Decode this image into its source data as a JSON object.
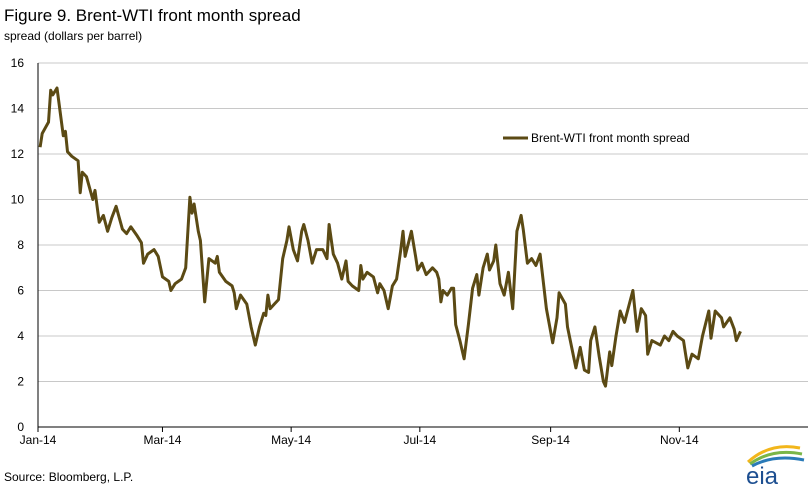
{
  "header": {
    "title": "Figure 9. Brent-WTI front month spread",
    "subtitle": "spread (dollars per barrel)"
  },
  "footer": {
    "source": "Source: Bloomberg, L.P.",
    "logo_text": "eia"
  },
  "colors": {
    "line": "#5b4a14",
    "grid": "#c8c8c8",
    "axis": "#000000"
  },
  "chart_data": {
    "type": "line",
    "title": "Figure 9. Brent-WTI front month spread",
    "ylabel": "spread (dollars per barrel)",
    "xlabel": "",
    "ylim": [
      0,
      16
    ],
    "yticks": [
      0,
      2,
      4,
      6,
      8,
      10,
      12,
      14,
      16
    ],
    "xlim": [
      "2014-01-02",
      "2014-12-31"
    ],
    "xticks": [
      {
        "date": "2014-01-01",
        "label": "Jan-14"
      },
      {
        "date": "2014-03-01",
        "label": "Mar-14"
      },
      {
        "date": "2014-05-01",
        "label": "May-14"
      },
      {
        "date": "2014-07-01",
        "label": "Jul-14"
      },
      {
        "date": "2014-09-01",
        "label": "Sep-14"
      },
      {
        "date": "2014-11-01",
        "label": "Nov-14"
      }
    ],
    "grid": "horizontal",
    "legend_position": "top-right",
    "series": [
      {
        "name": "Brent-WTI front month spread",
        "points": [
          [
            "2014-01-02",
            12.3
          ],
          [
            "2014-01-03",
            12.9
          ],
          [
            "2014-01-06",
            13.4
          ],
          [
            "2014-01-07",
            14.8
          ],
          [
            "2014-01-08",
            14.6
          ],
          [
            "2014-01-10",
            14.9
          ],
          [
            "2014-01-13",
            12.8
          ],
          [
            "2014-01-14",
            13.0
          ],
          [
            "2014-01-15",
            12.1
          ],
          [
            "2014-01-17",
            11.9
          ],
          [
            "2014-01-20",
            11.7
          ],
          [
            "2014-01-21",
            10.3
          ],
          [
            "2014-01-22",
            11.2
          ],
          [
            "2014-01-24",
            11.0
          ],
          [
            "2014-01-27",
            10.0
          ],
          [
            "2014-01-28",
            10.4
          ],
          [
            "2014-01-30",
            9.0
          ],
          [
            "2014-02-01",
            9.3
          ],
          [
            "2014-02-03",
            8.6
          ],
          [
            "2014-02-05",
            9.2
          ],
          [
            "2014-02-07",
            9.7
          ],
          [
            "2014-02-10",
            8.7
          ],
          [
            "2014-02-12",
            8.5
          ],
          [
            "2014-02-14",
            8.8
          ],
          [
            "2014-02-17",
            8.4
          ],
          [
            "2014-02-19",
            8.1
          ],
          [
            "2014-02-20",
            7.2
          ],
          [
            "2014-02-22",
            7.6
          ],
          [
            "2014-02-25",
            7.8
          ],
          [
            "2014-02-27",
            7.5
          ],
          [
            "2014-03-01",
            6.6
          ],
          [
            "2014-03-04",
            6.4
          ],
          [
            "2014-03-05",
            6.0
          ],
          [
            "2014-03-07",
            6.3
          ],
          [
            "2014-03-10",
            6.5
          ],
          [
            "2014-03-12",
            7.0
          ],
          [
            "2014-03-14",
            10.1
          ],
          [
            "2014-03-15",
            9.4
          ],
          [
            "2014-03-16",
            9.8
          ],
          [
            "2014-03-18",
            8.6
          ],
          [
            "2014-03-19",
            8.2
          ],
          [
            "2014-03-21",
            5.5
          ],
          [
            "2014-03-23",
            7.4
          ],
          [
            "2014-03-26",
            7.2
          ],
          [
            "2014-03-27",
            7.5
          ],
          [
            "2014-03-28",
            6.8
          ],
          [
            "2014-03-31",
            6.4
          ],
          [
            "2014-04-03",
            6.2
          ],
          [
            "2014-04-04",
            5.9
          ],
          [
            "2014-04-05",
            5.2
          ],
          [
            "2014-04-07",
            5.8
          ],
          [
            "2014-04-10",
            5.4
          ],
          [
            "2014-04-12",
            4.4
          ],
          [
            "2014-04-14",
            3.6
          ],
          [
            "2014-04-16",
            4.4
          ],
          [
            "2014-04-18",
            5.0
          ],
          [
            "2014-04-19",
            4.9
          ],
          [
            "2014-04-20",
            5.8
          ],
          [
            "2014-04-21",
            5.2
          ],
          [
            "2014-04-23",
            5.4
          ],
          [
            "2014-04-25",
            5.6
          ],
          [
            "2014-04-27",
            7.4
          ],
          [
            "2014-04-29",
            8.2
          ],
          [
            "2014-04-30",
            8.8
          ],
          [
            "2014-05-02",
            7.8
          ],
          [
            "2014-05-04",
            7.3
          ],
          [
            "2014-05-06",
            8.6
          ],
          [
            "2014-05-07",
            8.9
          ],
          [
            "2014-05-09",
            8.2
          ],
          [
            "2014-05-11",
            7.2
          ],
          [
            "2014-05-13",
            7.8
          ],
          [
            "2014-05-16",
            7.8
          ],
          [
            "2014-05-18",
            7.4
          ],
          [
            "2014-05-19",
            8.9
          ],
          [
            "2014-05-21",
            7.6
          ],
          [
            "2014-05-23",
            7.2
          ],
          [
            "2014-05-25",
            6.5
          ],
          [
            "2014-05-27",
            7.3
          ],
          [
            "2014-05-28",
            6.4
          ],
          [
            "2014-05-30",
            6.2
          ],
          [
            "2014-06-02",
            6.0
          ],
          [
            "2014-06-03",
            7.1
          ],
          [
            "2014-06-04",
            6.5
          ],
          [
            "2014-06-06",
            6.8
          ],
          [
            "2014-06-09",
            6.6
          ],
          [
            "2014-06-11",
            5.9
          ],
          [
            "2014-06-12",
            6.3
          ],
          [
            "2014-06-14",
            6.0
          ],
          [
            "2014-06-16",
            5.2
          ],
          [
            "2014-06-18",
            6.2
          ],
          [
            "2014-06-20",
            6.5
          ],
          [
            "2014-06-22",
            7.8
          ],
          [
            "2014-06-23",
            8.6
          ],
          [
            "2014-06-24",
            7.5
          ],
          [
            "2014-06-27",
            8.6
          ],
          [
            "2014-06-29",
            7.5
          ],
          [
            "2014-06-30",
            6.9
          ],
          [
            "2014-07-02",
            7.2
          ],
          [
            "2014-07-04",
            6.7
          ],
          [
            "2014-07-07",
            7.0
          ],
          [
            "2014-07-09",
            6.8
          ],
          [
            "2014-07-10",
            6.5
          ],
          [
            "2014-07-11",
            5.5
          ],
          [
            "2014-07-12",
            6.0
          ],
          [
            "2014-07-14",
            5.8
          ],
          [
            "2014-07-16",
            6.1
          ],
          [
            "2014-07-17",
            6.1
          ],
          [
            "2014-07-18",
            4.5
          ],
          [
            "2014-07-20",
            3.8
          ],
          [
            "2014-07-22",
            3.0
          ],
          [
            "2014-07-24",
            4.5
          ],
          [
            "2014-07-26",
            6.1
          ],
          [
            "2014-07-28",
            6.7
          ],
          [
            "2014-07-29",
            5.8
          ],
          [
            "2014-07-31",
            7.0
          ],
          [
            "2014-08-02",
            7.6
          ],
          [
            "2014-08-03",
            6.9
          ],
          [
            "2014-08-05",
            7.3
          ],
          [
            "2014-08-06",
            8.0
          ],
          [
            "2014-08-08",
            6.3
          ],
          [
            "2014-08-10",
            5.8
          ],
          [
            "2014-08-12",
            6.8
          ],
          [
            "2014-08-14",
            5.2
          ],
          [
            "2014-08-16",
            8.6
          ],
          [
            "2014-08-18",
            9.3
          ],
          [
            "2014-08-19",
            8.7
          ],
          [
            "2014-08-21",
            7.2
          ],
          [
            "2014-08-23",
            7.4
          ],
          [
            "2014-08-25",
            7.1
          ],
          [
            "2014-08-27",
            7.6
          ],
          [
            "2014-08-30",
            5.2
          ],
          [
            "2014-09-01",
            4.2
          ],
          [
            "2014-09-02",
            3.7
          ],
          [
            "2014-09-04",
            4.8
          ],
          [
            "2014-09-05",
            5.9
          ],
          [
            "2014-09-08",
            5.4
          ],
          [
            "2014-09-09",
            4.4
          ],
          [
            "2014-09-11",
            3.5
          ],
          [
            "2014-09-13",
            2.6
          ],
          [
            "2014-09-15",
            3.5
          ],
          [
            "2014-09-17",
            2.5
          ],
          [
            "2014-09-19",
            2.4
          ],
          [
            "2014-09-20",
            3.8
          ],
          [
            "2014-09-22",
            4.4
          ],
          [
            "2014-09-24",
            3.1
          ],
          [
            "2014-09-26",
            2.0
          ],
          [
            "2014-09-27",
            1.8
          ],
          [
            "2014-09-29",
            3.3
          ],
          [
            "2014-09-30",
            2.7
          ],
          [
            "2014-10-02",
            4.0
          ],
          [
            "2014-10-04",
            5.1
          ],
          [
            "2014-10-06",
            4.6
          ],
          [
            "2014-10-08",
            5.3
          ],
          [
            "2014-10-10",
            6.0
          ],
          [
            "2014-10-12",
            4.2
          ],
          [
            "2014-10-14",
            5.2
          ],
          [
            "2014-10-16",
            4.9
          ],
          [
            "2014-10-17",
            3.2
          ],
          [
            "2014-10-19",
            3.8
          ],
          [
            "2014-10-21",
            3.7
          ],
          [
            "2014-10-23",
            3.6
          ],
          [
            "2014-10-25",
            4.0
          ],
          [
            "2014-10-27",
            3.8
          ],
          [
            "2014-10-29",
            4.2
          ],
          [
            "2014-10-31",
            4.0
          ],
          [
            "2014-11-03",
            3.8
          ],
          [
            "2014-11-04",
            3.2
          ],
          [
            "2014-11-05",
            2.6
          ],
          [
            "2014-11-07",
            3.2
          ],
          [
            "2014-11-10",
            3.0
          ],
          [
            "2014-11-12",
            4.0
          ],
          [
            "2014-11-15",
            5.1
          ],
          [
            "2014-11-16",
            3.9
          ],
          [
            "2014-11-18",
            5.1
          ],
          [
            "2014-11-21",
            4.8
          ],
          [
            "2014-11-22",
            4.4
          ],
          [
            "2014-11-25",
            4.8
          ],
          [
            "2014-11-27",
            4.3
          ],
          [
            "2014-11-28",
            3.8
          ],
          [
            "2014-11-30",
            4.2
          ]
        ]
      }
    ]
  }
}
